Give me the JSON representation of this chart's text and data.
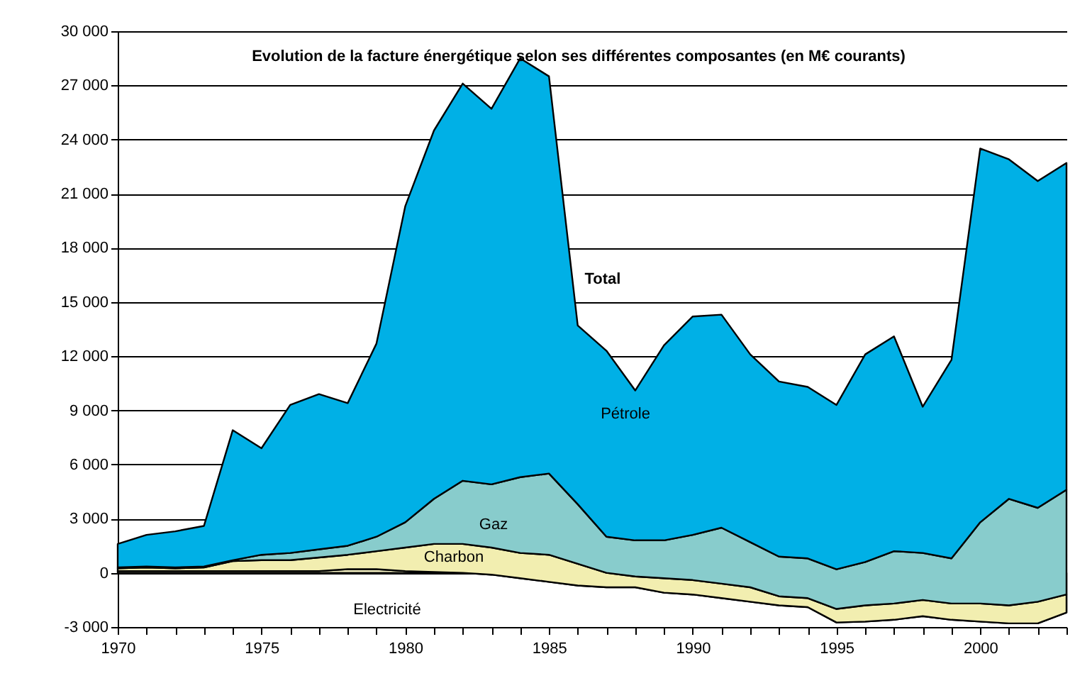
{
  "chart_data": {
    "type": "area",
    "stacked": true,
    "title": "Evolution de la facture énergétique selon ses différentes composantes (en M€ courants)",
    "x": [
      1970,
      1971,
      1972,
      1973,
      1974,
      1975,
      1976,
      1977,
      1978,
      1979,
      1980,
      1981,
      1982,
      1983,
      1984,
      1985,
      1986,
      1987,
      1988,
      1989,
      1990,
      1991,
      1992,
      1993,
      1994,
      1995,
      1996,
      1997,
      1998,
      1999,
      2000,
      2001,
      2002,
      2003
    ],
    "series": [
      {
        "color": "#f6f3c4",
        "values": [
          100,
          100,
          100,
          100,
          100,
          100,
          100,
          100,
          200,
          200,
          100,
          50,
          0,
          -100,
          -300,
          -500,
          -700,
          -800,
          -800,
          -1100,
          -1200,
          -1400,
          -1600,
          -1800,
          -1900,
          -2750,
          -2700,
          -2600,
          -2400,
          -2600,
          -2700,
          -2800,
          -2800,
          -2200
        ]
      },
      {
        "color": "#f2eeb0",
        "values": [
          150,
          200,
          150,
          200,
          550,
          600,
          600,
          750,
          800,
          1000,
          1300,
          1550,
          1600,
          1500,
          1400,
          1500,
          1200,
          800,
          600,
          800,
          800,
          800,
          800,
          500,
          500,
          750,
          900,
          900,
          900,
          900,
          1000,
          1000,
          1200,
          1000
        ]
      },
      {
        "color": "#88cccc",
        "values": [
          50,
          50,
          50,
          50,
          50,
          300,
          400,
          450,
          500,
          800,
          1400,
          2500,
          3500,
          3500,
          4200,
          4500,
          3300,
          2000,
          2000,
          2100,
          2500,
          3100,
          2500,
          2200,
          2200,
          2200,
          2400,
          2900,
          2600,
          2500,
          4500,
          5900,
          5200,
          5800
        ]
      },
      {
        "color": "#00b0e6",
        "values": [
          1300,
          1750,
          2000,
          2250,
          7200,
          5900,
          8200,
          8600,
          7900,
          10700,
          17500,
          20400,
          22000,
          20800,
          23200,
          22000,
          9900,
          10300,
          8300,
          10800,
          12100,
          11800,
          10400,
          9700,
          9500,
          9100,
          11500,
          11900,
          8100,
          11000,
          20700,
          18800,
          18100,
          18100
        ]
      }
    ],
    "annotations": [
      "Total",
      "Pétrole",
      "Gaz",
      "Charbon",
      "Electricité"
    ],
    "xlim": [
      1970,
      2003
    ],
    "xticks": [
      1970,
      {
        "value": 1971,
        "label": null
      },
      {
        "value": 1972,
        "label": null
      },
      {
        "value": 1973,
        "label": null
      },
      {
        "value": 1974,
        "label": null
      },
      1975,
      {
        "value": 1976,
        "label": null
      },
      {
        "value": 1977,
        "label": null
      },
      {
        "value": 1978,
        "label": null
      },
      {
        "value": 1979,
        "label": null
      },
      1980,
      {
        "value": 1981,
        "label": null
      },
      {
        "value": 1982,
        "label": null
      },
      {
        "value": 1983,
        "label": null
      },
      {
        "value": 1984,
        "label": null
      },
      1985,
      {
        "value": 1986,
        "label": null
      },
      {
        "value": 1987,
        "label": null
      },
      {
        "value": 1988,
        "label": null
      },
      {
        "value": 1989,
        "label": null
      },
      1990,
      {
        "value": 1991,
        "label": null
      },
      {
        "value": 1992,
        "label": null
      },
      {
        "value": 1993,
        "label": null
      },
      {
        "value": 1994,
        "label": null
      },
      1995,
      {
        "value": 1996,
        "label": null
      },
      {
        "value": 1997,
        "label": null
      },
      {
        "value": 1998,
        "label": null
      },
      {
        "value": 1999,
        "label": null
      },
      2000,
      {
        "value": 2001,
        "label": null
      },
      {
        "value": 2002,
        "label": null
      },
      {
        "value": 2003,
        "label": null
      }
    ],
    "ylim": [
      -3000,
      30000
    ],
    "yticks": [
      {
        "value": -3000,
        "label": "-3 000"
      },
      0,
      {
        "value": 3000,
        "label": "3 000"
      },
      {
        "value": 6000,
        "label": "6 000"
      },
      {
        "value": 9000,
        "label": "9 000"
      },
      {
        "value": 12000,
        "label": "12 000"
      },
      {
        "value": 15000,
        "label": "15 000"
      },
      {
        "value": 18000,
        "label": "18 000"
      },
      {
        "value": 21000,
        "label": "21 000"
      },
      {
        "value": 24000,
        "label": "24 000"
      },
      {
        "value": 27000,
        "label": "27 000"
      },
      {
        "value": 30000,
        "label": "30 000"
      }
    ],
    "grid": "y"
  }
}
